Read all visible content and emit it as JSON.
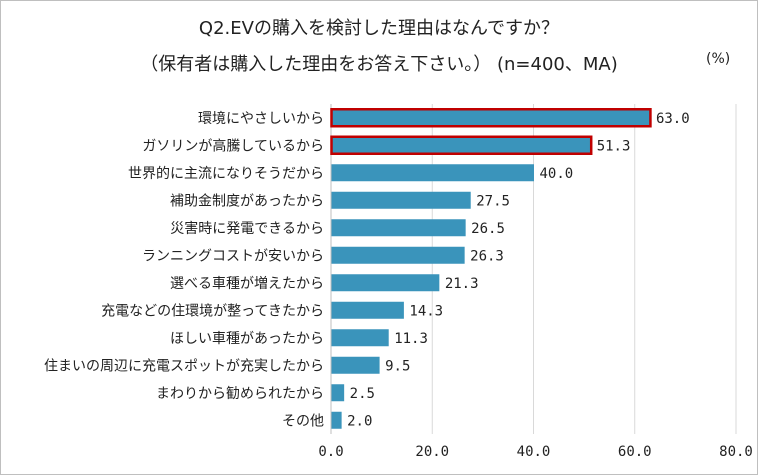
{
  "chart_data": {
    "type": "bar",
    "orientation": "horizontal",
    "title": "Q2.EVの購入を検討した理由はなんですか？",
    "subtitle": "（保有者は購入した理由をお答え下さい。） (n=400、MA)",
    "unit_label": "(%)",
    "categories": [
      "環境にやさしいから",
      "ガソリンが高騰しているから",
      "世界的に主流になりそうだから",
      "補助金制度があったから",
      "災害時に発電できるから",
      "ランニングコストが安いから",
      "選べる車種が増えたから",
      "充電などの住環境が整ってきたから",
      "ほしい車種があったから",
      "住まいの周辺に充電スポットが充実したから",
      "まわりから勧められたから",
      "その他"
    ],
    "values": [
      63.0,
      51.3,
      40.0,
      27.5,
      26.5,
      26.3,
      21.3,
      14.3,
      11.3,
      9.5,
      2.5,
      2.0
    ],
    "value_labels": [
      "63.0",
      "51.3",
      "40.0",
      "27.5",
      "26.5",
      "26.3",
      "21.3",
      "14.3",
      "11.3",
      "9.5",
      "2.5",
      "2.0"
    ],
    "highlighted": [
      true,
      true,
      false,
      false,
      false,
      false,
      false,
      false,
      false,
      false,
      false,
      false
    ],
    "xlim": [
      0,
      80
    ],
    "xticks": [
      0,
      20,
      40,
      60,
      80
    ],
    "xtick_labels": [
      "0.0",
      "20.0",
      "40.0",
      "60.0",
      "80.0"
    ],
    "grid": true,
    "colors": {
      "bar": "#3a94bb",
      "highlight_border": "#c00000",
      "grid": "#d9d9d9",
      "axis": "#bfbfbf"
    }
  }
}
